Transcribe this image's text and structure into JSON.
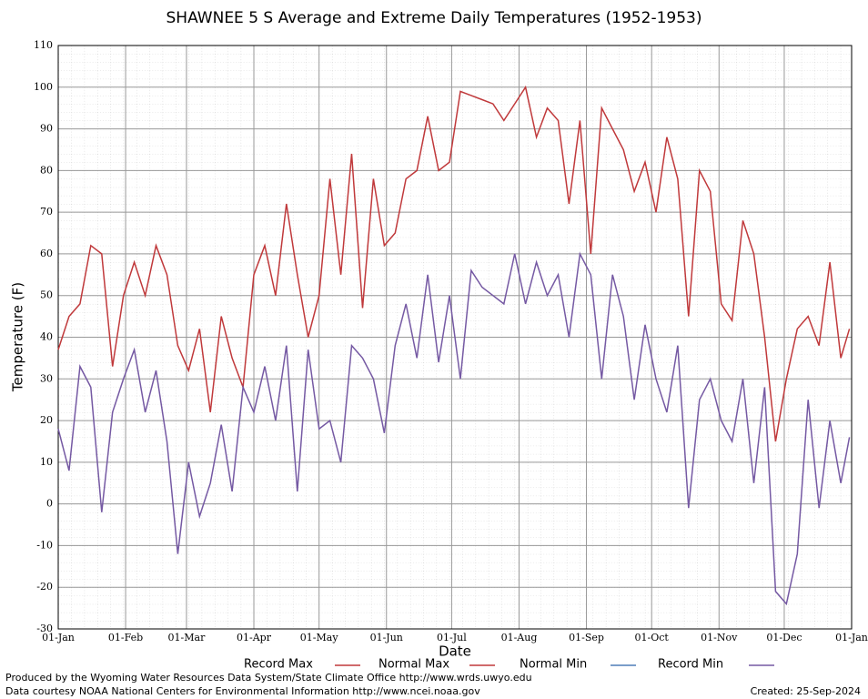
{
  "chart_data": {
    "type": "line",
    "title": "SHAWNEE 5 S Average and Extreme Daily Temperatures (1952-1953)",
    "xlabel": "Date",
    "ylabel": "Temperature (F)",
    "xlim": [
      0,
      365
    ],
    "xticks": [
      {
        "value": 0,
        "label": "01-Jan"
      },
      {
        "value": 31,
        "label": "01-Feb"
      },
      {
        "value": 59,
        "label": "01-Mar"
      },
      {
        "value": 90,
        "label": "01-Apr"
      },
      {
        "value": 120,
        "label": "01-May"
      },
      {
        "value": 151,
        "label": "01-Jun"
      },
      {
        "value": 181,
        "label": "01-Jul"
      },
      {
        "value": 212,
        "label": "01-Aug"
      },
      {
        "value": 243,
        "label": "01-Sep"
      },
      {
        "value": 273,
        "label": "01-Oct"
      },
      {
        "value": 304,
        "label": "01-Nov"
      },
      {
        "value": 334,
        "label": "01-Dec"
      },
      {
        "value": 365,
        "label": "01-Jan"
      }
    ],
    "ylim": [
      -30,
      110
    ],
    "yticks": [
      -30,
      -20,
      -10,
      0,
      10,
      20,
      30,
      40,
      50,
      60,
      70,
      80,
      90,
      100,
      110
    ],
    "grid": true,
    "legend": "bottom",
    "x": [
      0,
      5,
      10,
      15,
      20,
      25,
      30,
      35,
      40,
      45,
      50,
      55,
      60,
      65,
      70,
      75,
      80,
      85,
      90,
      95,
      100,
      105,
      110,
      115,
      120,
      125,
      130,
      135,
      140,
      145,
      150,
      155,
      160,
      165,
      170,
      175,
      180,
      185,
      190,
      195,
      200,
      205,
      210,
      215,
      220,
      225,
      230,
      235,
      240,
      245,
      250,
      255,
      260,
      265,
      270,
      275,
      280,
      285,
      290,
      295,
      300,
      305,
      310,
      315,
      320,
      325,
      330,
      335,
      340,
      345,
      350,
      355,
      360,
      364
    ],
    "series": [
      {
        "name": "Record Max",
        "color": "#c0393b",
        "values": [
          37,
          45,
          48,
          62,
          60,
          33,
          50,
          58,
          50,
          62,
          55,
          38,
          32,
          42,
          22,
          45,
          35,
          28,
          55,
          62,
          50,
          72,
          55,
          40,
          50,
          78,
          55,
          84,
          47,
          78,
          62,
          65,
          78,
          80,
          93,
          80,
          82,
          99,
          98,
          97,
          96,
          92,
          96,
          100,
          88,
          95,
          92,
          72,
          92,
          60,
          95,
          90,
          85,
          75,
          82,
          70,
          88,
          78,
          45,
          80,
          75,
          48,
          44,
          68,
          60,
          40,
          15,
          30,
          42,
          45,
          38,
          58,
          35,
          42
        ]
      },
      {
        "name": "Normal Max",
        "color": "#c0393b",
        "values": [
          null,
          null,
          null,
          null,
          null,
          null,
          null,
          null,
          null,
          null,
          null,
          null,
          null,
          null,
          null,
          null,
          null,
          null,
          null,
          null,
          null,
          null,
          null,
          null,
          null,
          null,
          null,
          null,
          null,
          null,
          null,
          null,
          null,
          null,
          null,
          null,
          null,
          null,
          null,
          null,
          null,
          null,
          null,
          null,
          null,
          null,
          null,
          null,
          null,
          null,
          null,
          null,
          null,
          null,
          null,
          null,
          null,
          null,
          null,
          null,
          null,
          null,
          null,
          null,
          null,
          null,
          null,
          null,
          null,
          null,
          null,
          null,
          null,
          null
        ]
      },
      {
        "name": "Normal Min",
        "color": "#4f7db8",
        "values": [
          null,
          null,
          null,
          null,
          null,
          null,
          null,
          null,
          null,
          null,
          null,
          null,
          null,
          null,
          null,
          null,
          null,
          null,
          null,
          null,
          null,
          null,
          null,
          null,
          null,
          null,
          null,
          null,
          null,
          null,
          null,
          null,
          null,
          null,
          null,
          null,
          null,
          null,
          null,
          null,
          null,
          null,
          null,
          null,
          null,
          null,
          null,
          null,
          null,
          null,
          null,
          null,
          null,
          null,
          null,
          null,
          null,
          null,
          null,
          null,
          null,
          null,
          null,
          null,
          null,
          null,
          null,
          null,
          null,
          null,
          null,
          null,
          null,
          null
        ]
      },
      {
        "name": "Record Min",
        "color": "#7559a3",
        "values": [
          18,
          8,
          33,
          28,
          -2,
          22,
          30,
          37,
          22,
          32,
          15,
          -12,
          10,
          -3,
          5,
          19,
          3,
          28,
          22,
          33,
          20,
          38,
          3,
          37,
          18,
          20,
          10,
          38,
          35,
          30,
          17,
          38,
          48,
          35,
          55,
          34,
          50,
          30,
          56,
          52,
          50,
          48,
          60,
          48,
          58,
          50,
          55,
          40,
          60,
          55,
          30,
          55,
          45,
          25,
          43,
          30,
          22,
          38,
          -1,
          25,
          30,
          20,
          15,
          30,
          5,
          28,
          -21,
          -24,
          -12,
          25,
          -1,
          20,
          5,
          16
        ]
      }
    ],
    "footer_left": [
      "Produced by the Wyoming Water Resources Data System/State Climate Office http://www.wrds.uwyo.edu",
      "Data courtesy NOAA National Centers for Environmental Information http://www.ncei.noaa.gov"
    ],
    "created": "Created: 25-Sep-2024"
  }
}
